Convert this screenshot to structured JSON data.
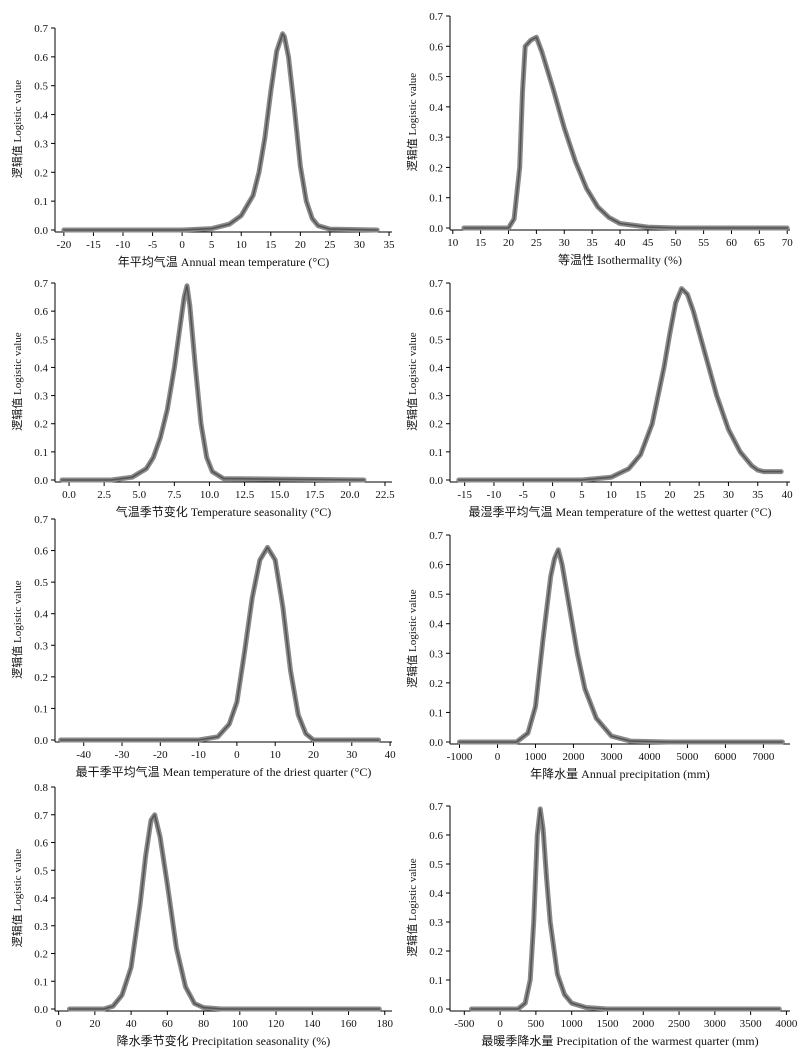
{
  "chart_data": [
    {
      "type": "line",
      "xlabel": "年平均气温 Annual mean temperature (°C)",
      "ylabel": "逻辑值 Logistic value",
      "xticks": [
        -20,
        -15,
        -10,
        -5,
        0,
        5,
        10,
        15,
        20,
        25,
        30,
        35
      ],
      "yticks": [
        0.0,
        0.1,
        0.2,
        0.3,
        0.4,
        0.5,
        0.6,
        0.7
      ],
      "xlim": [
        -21.5,
        35.5
      ],
      "ylim": [
        0,
        0.7
      ],
      "series": [
        {
          "x": [
            -20,
            0,
            5,
            8,
            10,
            12,
            13,
            14,
            15,
            16,
            17,
            17.3,
            18,
            19,
            20,
            21,
            22,
            23,
            25,
            33
          ],
          "y": [
            0.0,
            0.0,
            0.005,
            0.02,
            0.05,
            0.12,
            0.2,
            0.32,
            0.48,
            0.62,
            0.68,
            0.67,
            0.6,
            0.42,
            0.22,
            0.1,
            0.04,
            0.015,
            0.003,
            0.0
          ]
        }
      ]
    },
    {
      "type": "line",
      "xlabel": "等温性 Isothermality (%)",
      "ylabel": "逻辑值 Logistic value",
      "xticks": [
        10,
        15,
        20,
        25,
        30,
        35,
        40,
        45,
        50,
        55,
        60,
        65,
        70
      ],
      "yticks": [
        0.0,
        0.1,
        0.2,
        0.3,
        0.4,
        0.5,
        0.6,
        0.7
      ],
      "xlim": [
        9.5,
        70.5
      ],
      "ylim": [
        0,
        0.7
      ],
      "series": [
        {
          "x": [
            12,
            20,
            21,
            22,
            22.5,
            23,
            24,
            25,
            26,
            28,
            30,
            32,
            34,
            36,
            38,
            40,
            45,
            50,
            60,
            70
          ],
          "y": [
            0.0,
            0.0,
            0.03,
            0.2,
            0.45,
            0.6,
            0.62,
            0.63,
            0.58,
            0.46,
            0.33,
            0.22,
            0.13,
            0.07,
            0.035,
            0.015,
            0.003,
            0.0,
            0.0,
            0.0
          ]
        }
      ]
    },
    {
      "type": "line",
      "xlabel": "气温季节变化 Temperature seasonality (°C)",
      "ylabel": "逻辑值 Logistic value",
      "xticks": [
        0.0,
        2.5,
        5.0,
        7.5,
        10.0,
        12.5,
        15.0,
        17.5,
        20.0,
        22.5
      ],
      "yticks": [
        0.0,
        0.1,
        0.2,
        0.3,
        0.4,
        0.5,
        0.6,
        0.7
      ],
      "xlim": [
        -1,
        23
      ],
      "ylim": [
        0,
        0.7
      ],
      "series": [
        {
          "x": [
            -0.5,
            3,
            4.5,
            5.5,
            6,
            6.5,
            7,
            7.5,
            8,
            8.2,
            8.4,
            8.6,
            9,
            9.4,
            9.8,
            10.2,
            11,
            21
          ],
          "y": [
            0.0,
            0.0,
            0.01,
            0.04,
            0.08,
            0.15,
            0.25,
            0.4,
            0.58,
            0.65,
            0.69,
            0.62,
            0.4,
            0.2,
            0.08,
            0.03,
            0.005,
            0.0
          ]
        }
      ]
    },
    {
      "type": "line",
      "xlabel": "最湿季平均气温 Mean temperature of the wettest quarter (°C)",
      "ylabel": "逻辑值 Logistic value",
      "xticks": [
        -15,
        -10,
        -5,
        0,
        5,
        10,
        15,
        20,
        25,
        30,
        35,
        40
      ],
      "yticks": [
        0.0,
        0.1,
        0.2,
        0.3,
        0.4,
        0.5,
        0.6,
        0.7
      ],
      "xlim": [
        -17.5,
        40.5
      ],
      "ylim": [
        0,
        0.7
      ],
      "series": [
        {
          "x": [
            -16,
            5,
            10,
            13,
            15,
            17,
            19,
            20,
            21,
            22,
            23,
            24,
            26,
            28,
            30,
            32,
            34,
            35,
            36,
            39
          ],
          "y": [
            0.0,
            0.0,
            0.01,
            0.04,
            0.09,
            0.2,
            0.4,
            0.52,
            0.63,
            0.68,
            0.66,
            0.6,
            0.45,
            0.3,
            0.18,
            0.1,
            0.05,
            0.035,
            0.03,
            0.03
          ]
        }
      ]
    },
    {
      "type": "line",
      "xlabel": "最干季平均气温 Mean temperature of the driest quarter (°C)",
      "ylabel": "逻辑值 Logistic value",
      "xticks": [
        -40,
        -30,
        -20,
        -10,
        0,
        10,
        20,
        30,
        40
      ],
      "yticks": [
        0.0,
        0.1,
        0.2,
        0.3,
        0.4,
        0.5,
        0.6,
        0.7
      ],
      "xlim": [
        -47.5,
        40.5
      ],
      "ylim": [
        0,
        0.7
      ],
      "series": [
        {
          "x": [
            -46,
            -10,
            -5,
            -2,
            0,
            2,
            4,
            6,
            8,
            10,
            12,
            14,
            16,
            18,
            20,
            37
          ],
          "y": [
            0.0,
            0.0,
            0.01,
            0.05,
            0.12,
            0.28,
            0.45,
            0.57,
            0.61,
            0.57,
            0.42,
            0.22,
            0.08,
            0.02,
            0.0,
            0.0
          ]
        }
      ]
    },
    {
      "type": "line",
      "xlabel": "年降水量 Annual precipitation (mm)",
      "ylabel": "逻辑值 Logistic value",
      "xticks": [
        -1000,
        0,
        1000,
        2000,
        3000,
        4000,
        5000,
        6000,
        7000
      ],
      "yticks": [
        0.0,
        0.1,
        0.2,
        0.3,
        0.4,
        0.5,
        0.6,
        0.7
      ],
      "xlim": [
        -1250,
        7700
      ],
      "ylim": [
        0,
        0.7
      ],
      "series": [
        {
          "x": [
            -1000,
            500,
            800,
            1000,
            1200,
            1400,
            1500,
            1600,
            1700,
            1900,
            2100,
            2300,
            2600,
            3000,
            3500,
            4500,
            7500
          ],
          "y": [
            0.0,
            0.0,
            0.03,
            0.12,
            0.35,
            0.56,
            0.62,
            0.65,
            0.6,
            0.45,
            0.3,
            0.18,
            0.08,
            0.02,
            0.003,
            0.0,
            0.0
          ]
        }
      ]
    },
    {
      "type": "line",
      "xlabel": "降水季节变化 Precipitation seasonality (%)",
      "ylabel": "逻辑值 Logistic value",
      "xticks": [
        0,
        20,
        40,
        60,
        80,
        100,
        120,
        140,
        160,
        180
      ],
      "yticks": [
        0.0,
        0.1,
        0.2,
        0.3,
        0.4,
        0.5,
        0.6,
        0.7,
        0.8
      ],
      "xlim": [
        -2,
        184
      ],
      "ylim": [
        0,
        0.8
      ],
      "series": [
        {
          "x": [
            6,
            25,
            30,
            35,
            40,
            45,
            48,
            51,
            53,
            56,
            60,
            65,
            70,
            75,
            80,
            90,
            177
          ],
          "y": [
            0.0,
            0.0,
            0.01,
            0.05,
            0.15,
            0.38,
            0.55,
            0.68,
            0.7,
            0.62,
            0.45,
            0.22,
            0.08,
            0.02,
            0.005,
            0.0,
            0.0
          ]
        }
      ]
    },
    {
      "type": "line",
      "xlabel": "最暖季降水量 Precipitation of the warmest quarter (mm)",
      "ylabel": "逻辑值 Logistic value",
      "xticks": [
        -500,
        0,
        500,
        1000,
        1500,
        2000,
        2500,
        3000,
        3500,
        4000
      ],
      "yticks": [
        0.0,
        0.1,
        0.2,
        0.3,
        0.4,
        0.5,
        0.6,
        0.7
      ],
      "xlim": [
        -700,
        4050
      ],
      "ylim": [
        0,
        0.7
      ],
      "series": [
        {
          "x": [
            -400,
            250,
            350,
            420,
            470,
            520,
            560,
            600,
            650,
            700,
            800,
            900,
            1000,
            1200,
            1500,
            2000,
            3900
          ],
          "y": [
            0.0,
            0.0,
            0.02,
            0.1,
            0.3,
            0.6,
            0.69,
            0.62,
            0.45,
            0.3,
            0.12,
            0.05,
            0.02,
            0.005,
            0.0,
            0.0,
            0.0
          ]
        }
      ]
    }
  ]
}
